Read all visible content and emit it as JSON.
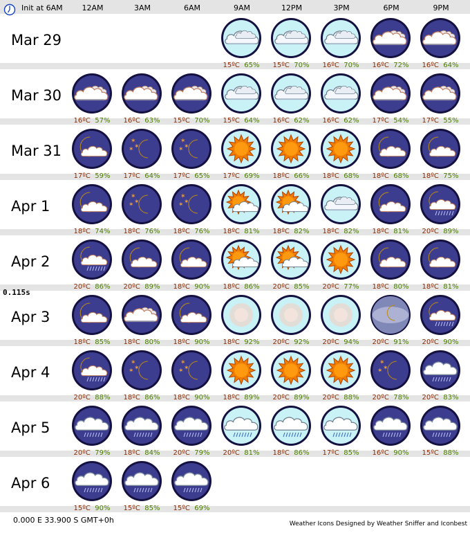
{
  "header": {
    "init_label": "Init at 6AM",
    "columns": [
      "12AM",
      "3AM",
      "6AM",
      "9AM",
      "12PM",
      "3PM",
      "6PM",
      "9PM"
    ]
  },
  "timing": "0.115s",
  "footer": {
    "coords": "0.000 E 33.900 S GMT+0h",
    "credit": "Weather Icons Designed by Weather Sniffer and Iconbest"
  },
  "colors": {
    "night_bg": "#3d3d90",
    "day_bg": "#c8f2f5",
    "sun": "#f07c00",
    "moon": "#f0c030",
    "ring": "#141040"
  },
  "days": [
    {
      "date": "Mar 29",
      "start": 3,
      "cells": [
        {
          "icon": "day-cloudy",
          "temp": "15ºC",
          "hum": "65%"
        },
        {
          "icon": "day-cloudy",
          "temp": "15ºC",
          "hum": "70%"
        },
        {
          "icon": "day-cloudy",
          "temp": "16ºC",
          "hum": "70%"
        },
        {
          "icon": "night-cloudy",
          "temp": "16ºC",
          "hum": "72%"
        },
        {
          "icon": "night-cloudy",
          "temp": "16ºC",
          "hum": "64%"
        }
      ]
    },
    {
      "date": "Mar 30",
      "start": 0,
      "cells": [
        {
          "icon": "night-cloudy",
          "temp": "16ºC",
          "hum": "57%"
        },
        {
          "icon": "night-cloudy",
          "temp": "16ºC",
          "hum": "63%"
        },
        {
          "icon": "night-cloudy",
          "temp": "15ºC",
          "hum": "70%"
        },
        {
          "icon": "day-cloudy",
          "temp": "15ºC",
          "hum": "64%"
        },
        {
          "icon": "day-cloudy",
          "temp": "16ºC",
          "hum": "62%"
        },
        {
          "icon": "day-cloudy",
          "temp": "16ºC",
          "hum": "62%"
        },
        {
          "icon": "night-cloudy",
          "temp": "17ºC",
          "hum": "54%"
        },
        {
          "icon": "night-cloudy",
          "temp": "17ºC",
          "hum": "55%"
        }
      ]
    },
    {
      "date": "Mar 31",
      "start": 0,
      "cells": [
        {
          "icon": "moon-cloud",
          "temp": "17ºC",
          "hum": "59%"
        },
        {
          "icon": "moon-stars",
          "temp": "17ºC",
          "hum": "64%"
        },
        {
          "icon": "moon-stars",
          "temp": "17ºC",
          "hum": "65%"
        },
        {
          "icon": "sun",
          "temp": "17ºC",
          "hum": "69%"
        },
        {
          "icon": "sun",
          "temp": "18ºC",
          "hum": "66%"
        },
        {
          "icon": "sun",
          "temp": "18ºC",
          "hum": "68%"
        },
        {
          "icon": "moon-cloud",
          "temp": "18ºC",
          "hum": "68%"
        },
        {
          "icon": "moon-cloud",
          "temp": "18ºC",
          "hum": "75%"
        }
      ]
    },
    {
      "date": "Apr 1",
      "start": 0,
      "cells": [
        {
          "icon": "moon-cloud",
          "temp": "18ºC",
          "hum": "74%"
        },
        {
          "icon": "moon-stars",
          "temp": "18ºC",
          "hum": "76%"
        },
        {
          "icon": "moon-stars",
          "temp": "18ºC",
          "hum": "76%"
        },
        {
          "icon": "sun-cloud",
          "temp": "18ºC",
          "hum": "81%"
        },
        {
          "icon": "sun-cloud",
          "temp": "18ºC",
          "hum": "82%"
        },
        {
          "icon": "day-cloudy",
          "temp": "18ºC",
          "hum": "82%"
        },
        {
          "icon": "moon-cloud",
          "temp": "18ºC",
          "hum": "81%"
        },
        {
          "icon": "moon-cloud-rain",
          "temp": "20ºC",
          "hum": "89%"
        }
      ]
    },
    {
      "date": "Apr 2",
      "start": 0,
      "cells": [
        {
          "icon": "moon-cloud-rain",
          "temp": "20ºC",
          "hum": "86%"
        },
        {
          "icon": "moon-cloud",
          "temp": "20ºC",
          "hum": "89%"
        },
        {
          "icon": "moon-cloud",
          "temp": "18ºC",
          "hum": "90%"
        },
        {
          "icon": "sun-cloud",
          "temp": "18ºC",
          "hum": "86%"
        },
        {
          "icon": "sun-cloud",
          "temp": "20ºC",
          "hum": "85%"
        },
        {
          "icon": "sun",
          "temp": "20ºC",
          "hum": "77%"
        },
        {
          "icon": "moon-cloud",
          "temp": "18ºC",
          "hum": "80%"
        },
        {
          "icon": "moon-cloud",
          "temp": "18ºC",
          "hum": "81%"
        }
      ]
    },
    {
      "date": "Apr 3",
      "start": 0,
      "cells": [
        {
          "icon": "moon-cloud",
          "temp": "18ºC",
          "hum": "85%"
        },
        {
          "icon": "night-cloudy",
          "temp": "18ºC",
          "hum": "80%"
        },
        {
          "icon": "moon-cloud",
          "temp": "18ºC",
          "hum": "90%"
        },
        {
          "icon": "fog",
          "temp": "18ºC",
          "hum": "92%"
        },
        {
          "icon": "fog",
          "temp": "20ºC",
          "hum": "92%"
        },
        {
          "icon": "fog",
          "temp": "20ºC",
          "hum": "94%"
        },
        {
          "icon": "night-fog",
          "temp": "20ºC",
          "hum": "91%"
        },
        {
          "icon": "moon-cloud-rain",
          "temp": "20ºC",
          "hum": "90%"
        }
      ]
    },
    {
      "date": "Apr 4",
      "start": 0,
      "cells": [
        {
          "icon": "moon-cloud-rain",
          "temp": "20ºC",
          "hum": "88%"
        },
        {
          "icon": "moon-stars",
          "temp": "18ºC",
          "hum": "86%"
        },
        {
          "icon": "moon-stars",
          "temp": "18ºC",
          "hum": "90%"
        },
        {
          "icon": "sun",
          "temp": "18ºC",
          "hum": "89%"
        },
        {
          "icon": "sun",
          "temp": "20ºC",
          "hum": "89%"
        },
        {
          "icon": "sun",
          "temp": "20ºC",
          "hum": "88%"
        },
        {
          "icon": "moon-stars",
          "temp": "20ºC",
          "hum": "78%"
        },
        {
          "icon": "night-rain",
          "temp": "20ºC",
          "hum": "83%"
        }
      ]
    },
    {
      "date": "Apr 5",
      "start": 0,
      "cells": [
        {
          "icon": "night-rain",
          "temp": "20ºC",
          "hum": "79%"
        },
        {
          "icon": "night-rain",
          "temp": "18ºC",
          "hum": "84%"
        },
        {
          "icon": "night-rain",
          "temp": "20ºC",
          "hum": "79%"
        },
        {
          "icon": "day-rain",
          "temp": "20ºC",
          "hum": "81%"
        },
        {
          "icon": "day-rain",
          "temp": "18ºC",
          "hum": "86%"
        },
        {
          "icon": "day-rain",
          "temp": "17ºC",
          "hum": "85%"
        },
        {
          "icon": "night-rain",
          "temp": "16ºC",
          "hum": "90%"
        },
        {
          "icon": "night-rain",
          "temp": "15ºC",
          "hum": "88%"
        }
      ]
    },
    {
      "date": "Apr 6",
      "start": 0,
      "cells": [
        {
          "icon": "night-rain",
          "temp": "15ºC",
          "hum": "90%"
        },
        {
          "icon": "night-rain",
          "temp": "15ºC",
          "hum": "85%"
        },
        {
          "icon": "night-rain",
          "temp": "15ºC",
          "hum": "69%"
        }
      ]
    }
  ]
}
